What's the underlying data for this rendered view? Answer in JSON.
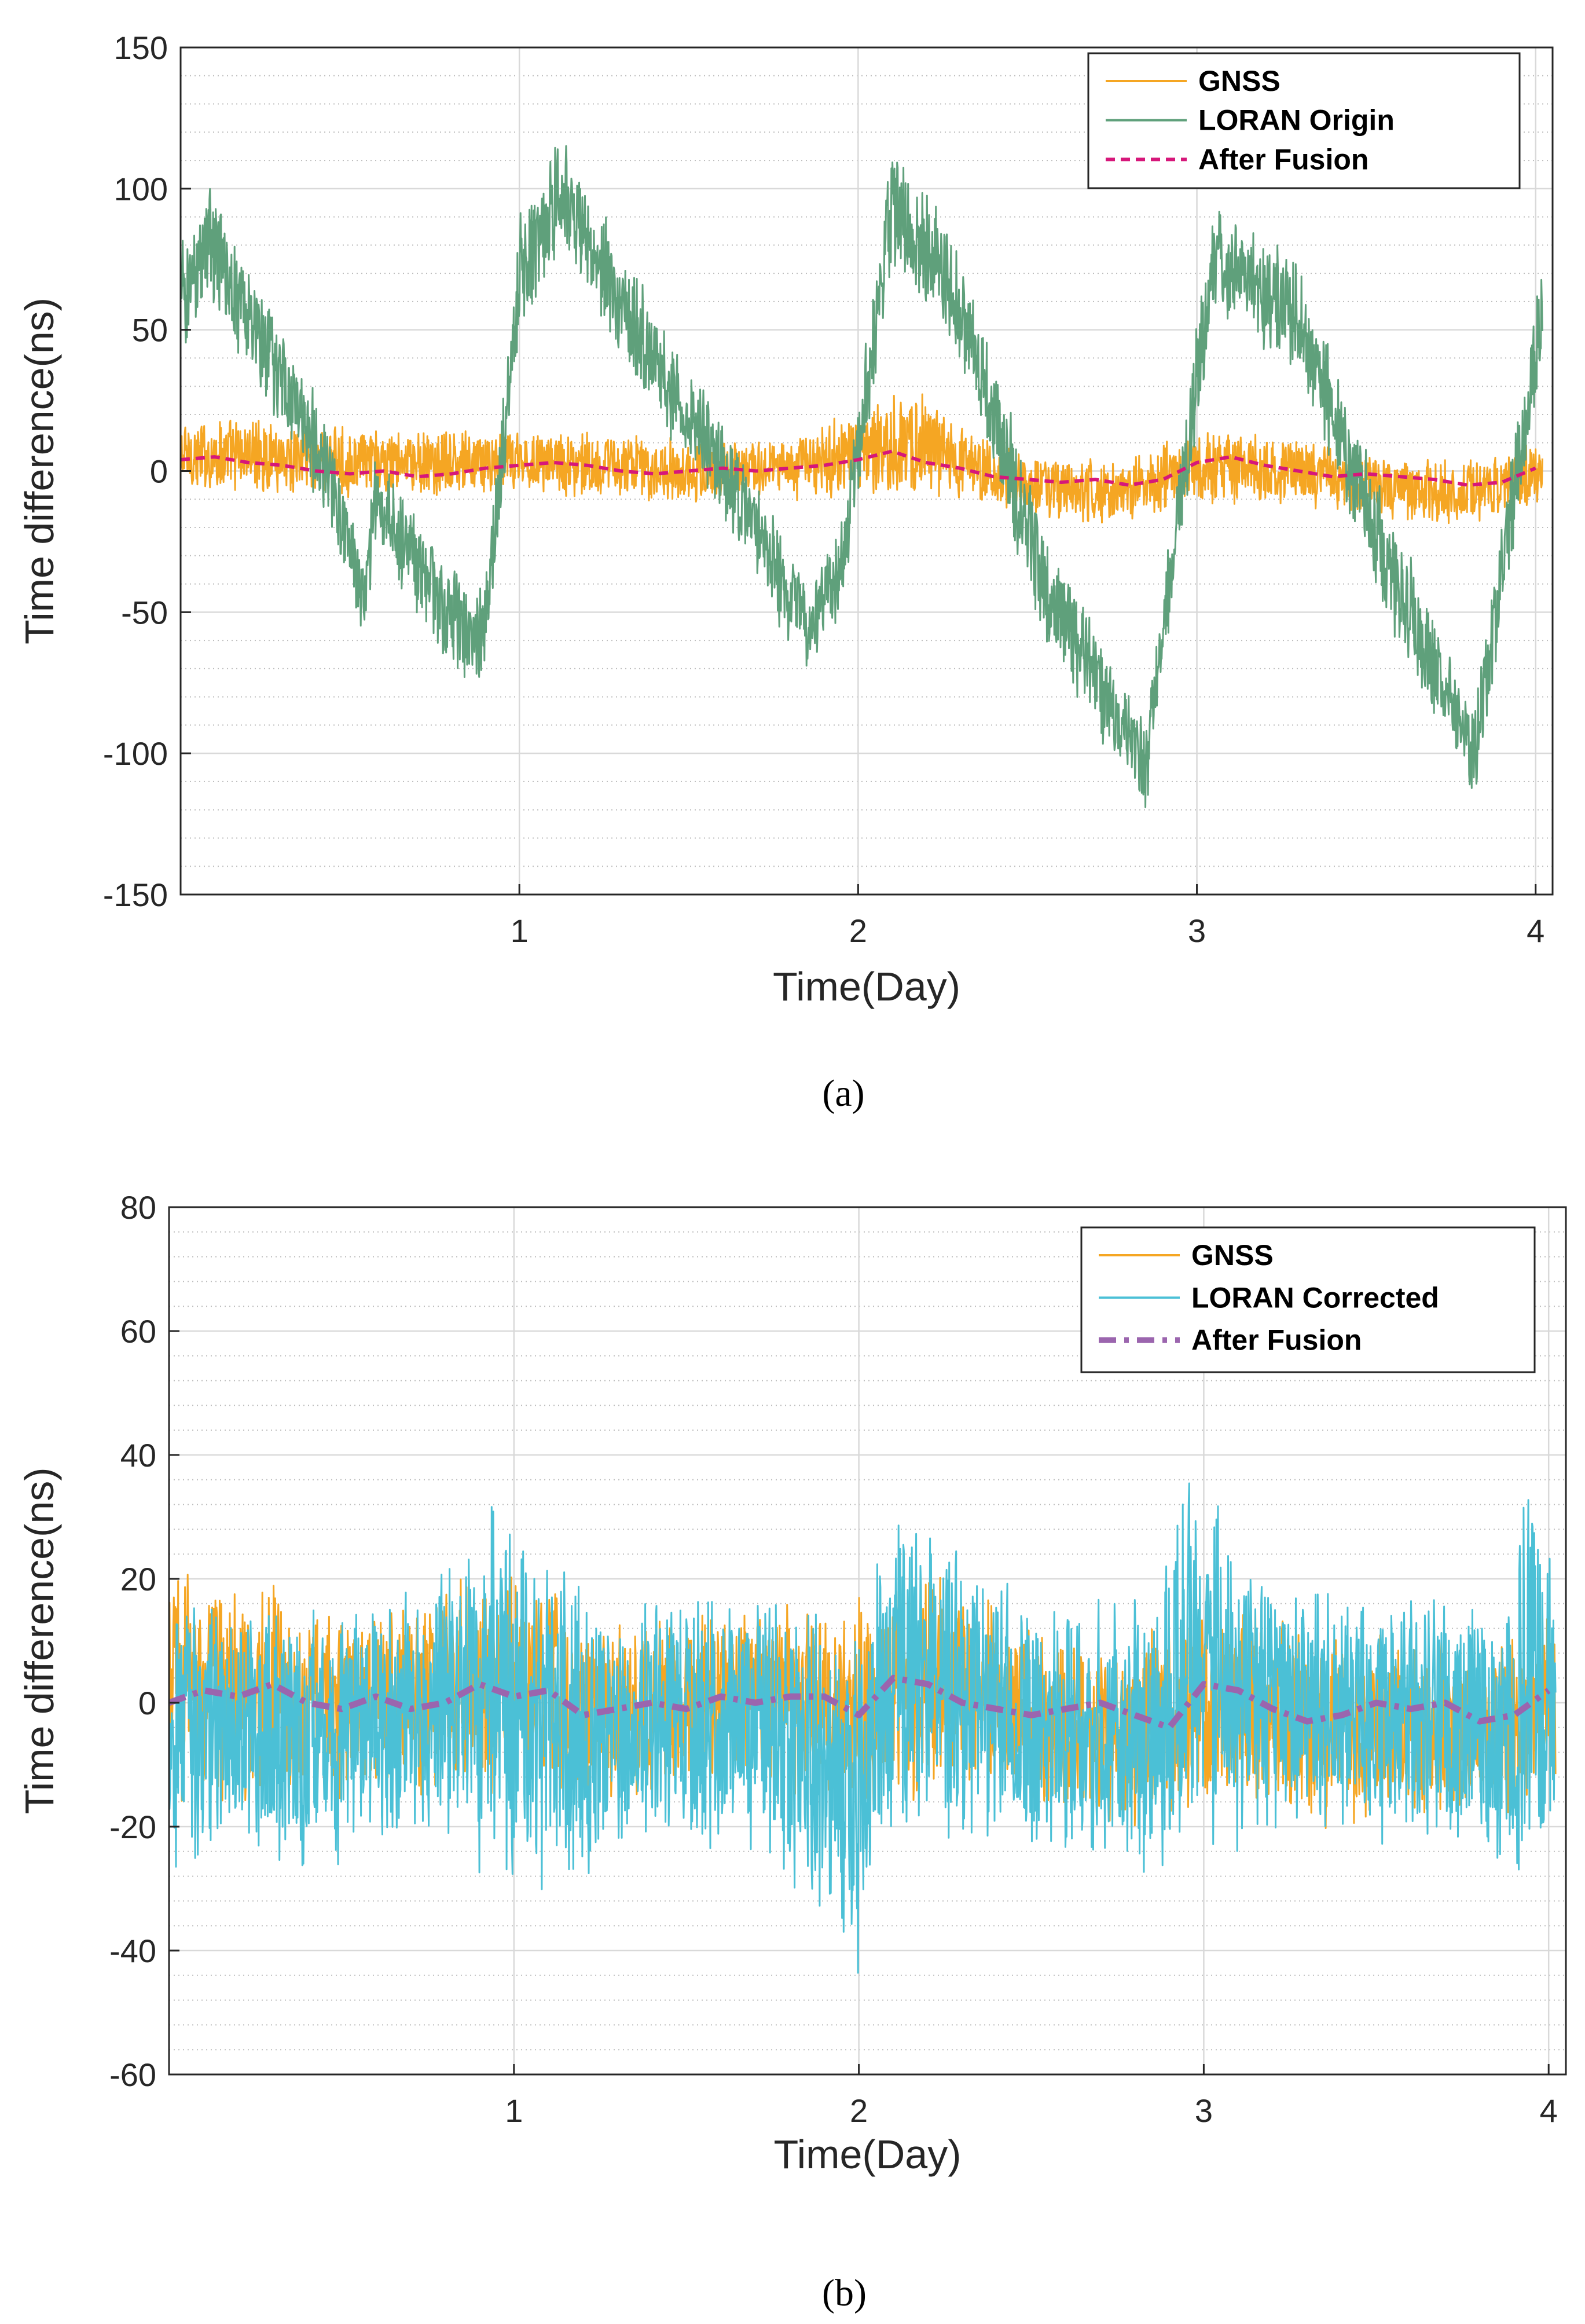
{
  "colors": {
    "gnss": "#F5A623",
    "loran_origin": "#5FA07B",
    "after_fusion_a": "#D6177A",
    "loran_corrected": "#4BC0D6",
    "after_fusion_b": "#9B65AE",
    "grid_major": "#D9D9D9",
    "grid_minor": "#BDBDBD",
    "axis": "#262626"
  },
  "chart_data": [
    {
      "type": "line",
      "panel_caption": "(a)",
      "xlabel": "Time(Day)",
      "ylabel": "Time difference(ns)",
      "xlim": [
        0,
        4.05
      ],
      "ylim": [
        -150,
        150
      ],
      "xticks": [
        1,
        2,
        3,
        4
      ],
      "xtick_labels": [
        "1",
        "2",
        "3",
        "4"
      ],
      "yticks": [
        -150,
        -100,
        -50,
        0,
        50,
        100,
        150
      ],
      "ytick_labels": [
        "-150",
        "-100",
        "-50",
        "0",
        "50",
        "100",
        "150"
      ],
      "grid": true,
      "minor_grid": true,
      "legend_location": "top-right",
      "legend": [
        "GNSS",
        "LORAN Origin",
        "After Fusion"
      ],
      "series": [
        {
          "name": "GNSS",
          "style": "solid",
          "x": [
            0,
            0.25,
            0.5,
            0.75,
            1.0,
            1.25,
            1.5,
            1.75,
            2.0,
            2.15,
            2.3,
            2.5,
            2.75,
            3.0,
            3.25,
            3.5,
            3.75,
            4.0
          ],
          "center": [
            5,
            6,
            3,
            2,
            4,
            2,
            0,
            1,
            5,
            12,
            3,
            -5,
            -8,
            2,
            0,
            -4,
            -8,
            -2
          ],
          "spread": [
            15,
            14,
            13,
            13,
            12,
            13,
            12,
            12,
            16,
            20,
            14,
            12,
            12,
            14,
            13,
            12,
            12,
            12
          ]
        },
        {
          "name": "LORAN Origin",
          "style": "solid",
          "x": [
            0,
            0.08,
            0.4,
            0.55,
            0.57,
            0.85,
            0.9,
            1.0,
            1.12,
            1.35,
            1.6,
            1.85,
            1.95,
            2.1,
            2.3,
            2.55,
            2.85,
            2.95,
            3.05,
            3.3,
            3.55,
            3.82,
            3.92,
            4.02
          ],
          "center": [
            60,
            82,
            10,
            -45,
            -10,
            -60,
            -55,
            70,
            98,
            50,
            0,
            -55,
            -35,
            95,
            60,
            -40,
            -105,
            -10,
            75,
            55,
            -30,
            -100,
            -20,
            58
          ],
          "spread": [
            22,
            22,
            20,
            18,
            18,
            20,
            20,
            22,
            22,
            22,
            20,
            18,
            18,
            24,
            22,
            22,
            18,
            20,
            22,
            22,
            22,
            18,
            20,
            22
          ]
        },
        {
          "name": "After Fusion",
          "style": "dashed",
          "x": [
            0,
            0.1,
            0.2,
            0.3,
            0.4,
            0.5,
            0.6,
            0.7,
            0.8,
            0.9,
            1.0,
            1.1,
            1.2,
            1.3,
            1.4,
            1.5,
            1.6,
            1.7,
            1.8,
            1.9,
            2.0,
            2.1,
            2.2,
            2.3,
            2.4,
            2.5,
            2.6,
            2.7,
            2.8,
            2.9,
            3.0,
            3.1,
            3.2,
            3.3,
            3.4,
            3.5,
            3.6,
            3.7,
            3.8,
            3.9,
            4.0
          ],
          "values": [
            4,
            5,
            3,
            2,
            0,
            -1,
            0,
            -2,
            -1,
            1,
            2,
            3,
            2,
            0,
            -1,
            0,
            1,
            0,
            1,
            2,
            4,
            7,
            3,
            1,
            -2,
            -3,
            -4,
            -3,
            -5,
            -3,
            3,
            5,
            2,
            0,
            -2,
            -1,
            -2,
            -3,
            -5,
            -4,
            1
          ]
        }
      ]
    },
    {
      "type": "line",
      "panel_caption": "(b)",
      "xlabel": "Time(Day)",
      "ylabel": "Time difference(ns)",
      "xlim": [
        0,
        4.05
      ],
      "ylim": [
        -60,
        80
      ],
      "xticks": [
        1,
        2,
        3,
        4
      ],
      "xtick_labels": [
        "1",
        "2",
        "3",
        "4"
      ],
      "yticks": [
        -60,
        -40,
        -20,
        0,
        20,
        40,
        60,
        80
      ],
      "ytick_labels": [
        "-60",
        "-40",
        "-20",
        "0",
        "20",
        "40",
        "60",
        "80"
      ],
      "grid": true,
      "minor_grid": true,
      "legend_location": "top-right",
      "legend": [
        "GNSS",
        "LORAN Corrected",
        "After Fusion"
      ],
      "series": [
        {
          "name": "GNSS",
          "style": "solid",
          "x": [
            0,
            0.25,
            0.5,
            0.75,
            1.0,
            1.25,
            1.5,
            1.75,
            2.0,
            2.2,
            2.4,
            2.6,
            2.8,
            3.0,
            3.2,
            3.4,
            3.6,
            3.8,
            4.0
          ],
          "center": [
            3,
            2,
            0,
            2,
            3,
            -2,
            0,
            1,
            0,
            4,
            0,
            -4,
            -6,
            2,
            -2,
            -5,
            -3,
            -6,
            0
          ],
          "spread": [
            22,
            18,
            16,
            17,
            20,
            16,
            15,
            16,
            18,
            20,
            16,
            15,
            16,
            20,
            16,
            17,
            16,
            15,
            16
          ]
        },
        {
          "name": "LORAN Corrected",
          "style": "solid",
          "x": [
            0,
            0.1,
            0.3,
            0.5,
            0.65,
            0.8,
            0.92,
            1.05,
            1.2,
            1.3,
            1.5,
            1.7,
            1.9,
            2.0,
            2.1,
            2.3,
            2.5,
            2.7,
            2.85,
            2.97,
            3.1,
            3.3,
            3.5,
            3.7,
            3.85,
            3.95,
            4.02
          ],
          "center": [
            -5,
            -3,
            -5,
            -5,
            -3,
            0,
            5,
            -2,
            -5,
            -3,
            -2,
            -3,
            -10,
            -15,
            5,
            0,
            -5,
            -5,
            -5,
            10,
            0,
            0,
            -2,
            -3,
            -5,
            5,
            0
          ],
          "spread": [
            25,
            22,
            22,
            22,
            20,
            25,
            35,
            30,
            25,
            20,
            22,
            22,
            25,
            30,
            30,
            25,
            22,
            22,
            25,
            35,
            25,
            22,
            22,
            22,
            25,
            35,
            22
          ]
        },
        {
          "name": "After Fusion",
          "style": "dashdot",
          "x": [
            0,
            0.1,
            0.2,
            0.3,
            0.4,
            0.5,
            0.6,
            0.7,
            0.8,
            0.9,
            1.0,
            1.1,
            1.2,
            1.3,
            1.4,
            1.5,
            1.6,
            1.7,
            1.8,
            1.9,
            2.0,
            2.1,
            2.2,
            2.3,
            2.4,
            2.5,
            2.6,
            2.7,
            2.8,
            2.9,
            3.0,
            3.1,
            3.2,
            3.3,
            3.4,
            3.5,
            3.6,
            3.7,
            3.8,
            3.9,
            4.0
          ],
          "values": [
            0,
            2,
            1,
            3,
            0,
            -1,
            1,
            -1,
            0,
            3,
            1,
            2,
            -2,
            -1,
            0,
            -1,
            1,
            0,
            1,
            1,
            -2,
            4,
            3,
            0,
            -1,
            -2,
            -1,
            0,
            -2,
            -4,
            3,
            2,
            -1,
            -3,
            -2,
            0,
            -1,
            0,
            -3,
            -2,
            2
          ]
        }
      ]
    }
  ]
}
